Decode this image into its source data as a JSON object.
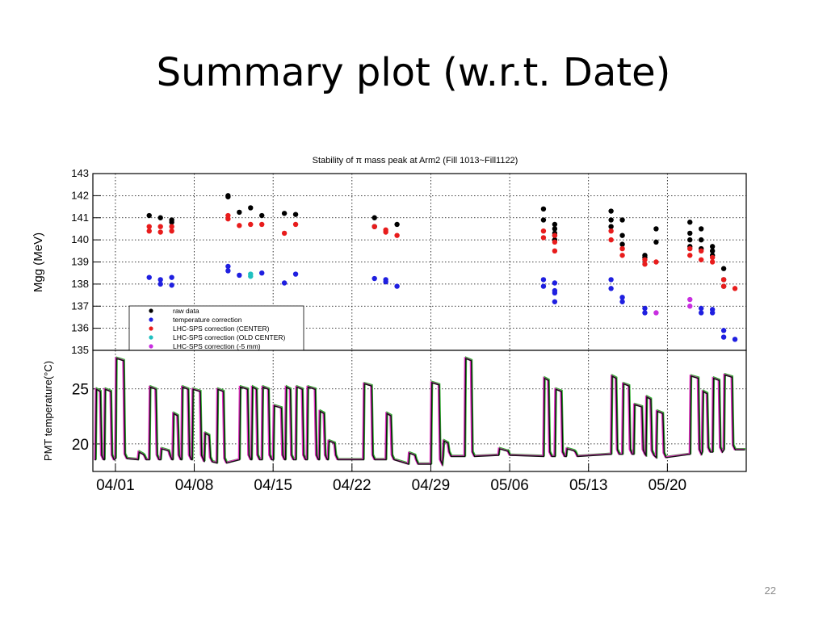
{
  "slide": {
    "title": "Summary plot (w.r.t. Date)",
    "page_number": "22"
  },
  "chart_data": [
    {
      "type": "scatter",
      "title": "Stability of π mass peak at Arm2 (Fill 1013~Fill1122)",
      "xlabel": "",
      "ylabel": "Mgg (MeV)",
      "ylim": [
        135,
        143
      ],
      "yticks": [
        "143",
        "142",
        "141",
        "140",
        "139",
        "138",
        "137",
        "136",
        "135"
      ],
      "xlim": [
        "03/30",
        "05/27"
      ],
      "grid": true,
      "legend_placement": "bottom-left",
      "legend": [
        {
          "label": "raw data",
          "color": "#000000"
        },
        {
          "label": "temperature correction",
          "color": "#1f1fe0"
        },
        {
          "label": "LHC-SPS correction (CENTER)",
          "color": "#e81c1c"
        },
        {
          "label": "LHC-SPS correction (OLD CENTER)",
          "color": "#20c0c0"
        },
        {
          "label": "LHC-SPS correction (-5 mm)",
          "color": "#c82ee0"
        }
      ],
      "series": [
        {
          "name": "raw data",
          "color": "#000000",
          "points": [
            [
              "04/04",
              141.1
            ],
            [
              "04/05",
              141.0
            ],
            [
              "04/06",
              140.9
            ],
            [
              "04/06",
              140.8
            ],
            [
              "04/11",
              142.0
            ],
            [
              "04/11",
              141.95
            ],
            [
              "04/12",
              141.25
            ],
            [
              "04/13",
              141.45
            ],
            [
              "04/14",
              141.1
            ],
            [
              "04/16",
              141.2
            ],
            [
              "04/17",
              141.15
            ],
            [
              "04/24",
              141.0
            ],
            [
              "04/24",
              140.6
            ],
            [
              "04/26",
              140.7
            ],
            [
              "05/09",
              141.4
            ],
            [
              "05/09",
              140.9
            ],
            [
              "05/10",
              140.5
            ],
            [
              "05/10",
              140.3
            ],
            [
              "05/10",
              140.0
            ],
            [
              "05/10",
              140.7
            ],
            [
              "05/10",
              140.2
            ],
            [
              "05/15",
              141.3
            ],
            [
              "05/15",
              140.9
            ],
            [
              "05/15",
              140.6
            ],
            [
              "05/16",
              140.9
            ],
            [
              "05/16",
              140.2
            ],
            [
              "05/16",
              139.8
            ],
            [
              "05/18",
              139.3
            ],
            [
              "05/18",
              139.2
            ],
            [
              "05/19",
              140.5
            ],
            [
              "05/19",
              139.9
            ],
            [
              "05/22",
              140.8
            ],
            [
              "05/22",
              140.3
            ],
            [
              "05/22",
              140.0
            ],
            [
              "05/22",
              139.7
            ],
            [
              "05/23",
              140.5
            ],
            [
              "05/23",
              140.0
            ],
            [
              "05/23",
              139.6
            ],
            [
              "05/24",
              139.5
            ],
            [
              "05/24",
              139.3
            ],
            [
              "05/24",
              139.7
            ],
            [
              "05/25",
              138.7
            ],
            [
              "05/25",
              138.2
            ],
            [
              "05/25",
              137.9
            ]
          ]
        },
        {
          "name": "temperature correction",
          "color": "#1f1fe0",
          "points": [
            [
              "04/04",
              138.3
            ],
            [
              "04/05",
              138.2
            ],
            [
              "04/05",
              138.0
            ],
            [
              "04/06",
              138.3
            ],
            [
              "04/06",
              137.95
            ],
            [
              "04/11",
              138.8
            ],
            [
              "04/11",
              138.6
            ],
            [
              "04/12",
              138.4
            ],
            [
              "04/14",
              138.5
            ],
            [
              "04/16",
              138.05
            ],
            [
              "04/17",
              138.45
            ],
            [
              "04/24",
              138.25
            ],
            [
              "04/25",
              138.2
            ],
            [
              "04/25",
              138.1
            ],
            [
              "04/26",
              137.9
            ],
            [
              "05/09",
              138.2
            ],
            [
              "05/09",
              137.9
            ],
            [
              "05/10",
              138.05
            ],
            [
              "05/10",
              137.7
            ],
            [
              "05/10",
              137.2
            ],
            [
              "05/10",
              137.6
            ],
            [
              "05/15",
              138.2
            ],
            [
              "05/15",
              137.8
            ],
            [
              "05/16",
              137.4
            ],
            [
              "05/16",
              137.2
            ],
            [
              "05/18",
              136.9
            ],
            [
              "05/18",
              136.7
            ],
            [
              "05/23",
              136.9
            ],
            [
              "05/23",
              136.7
            ],
            [
              "05/24",
              136.85
            ],
            [
              "05/24",
              136.7
            ],
            [
              "05/25",
              135.9
            ],
            [
              "05/25",
              135.6
            ],
            [
              "05/26",
              135.5
            ]
          ]
        },
        {
          "name": "LHC-SPS correction (CENTER)",
          "color": "#e81c1c",
          "points": [
            [
              "04/04",
              140.6
            ],
            [
              "04/04",
              140.4
            ],
            [
              "04/05",
              140.6
            ],
            [
              "04/05",
              140.35
            ],
            [
              "04/06",
              140.6
            ],
            [
              "04/06",
              140.4
            ],
            [
              "04/11",
              141.1
            ],
            [
              "04/11",
              140.95
            ],
            [
              "04/12",
              140.65
            ],
            [
              "04/13",
              140.7
            ],
            [
              "04/14",
              140.7
            ],
            [
              "04/16",
              140.3
            ],
            [
              "04/17",
              140.7
            ],
            [
              "04/24",
              140.6
            ],
            [
              "04/25",
              140.45
            ],
            [
              "04/25",
              140.35
            ],
            [
              "04/26",
              140.2
            ],
            [
              "05/09",
              140.4
            ],
            [
              "05/09",
              140.1
            ],
            [
              "05/10",
              140.2
            ],
            [
              "05/10",
              139.9
            ],
            [
              "05/10",
              139.5
            ],
            [
              "05/15",
              140.4
            ],
            [
              "05/15",
              140.0
            ],
            [
              "05/16",
              139.6
            ],
            [
              "05/16",
              139.3
            ],
            [
              "05/18",
              139.1
            ],
            [
              "05/18",
              138.9
            ],
            [
              "05/19",
              139.0
            ],
            [
              "05/22",
              139.6
            ],
            [
              "05/22",
              139.3
            ],
            [
              "05/23",
              139.5
            ],
            [
              "05/23",
              139.1
            ],
            [
              "05/24",
              139.2
            ],
            [
              "05/24",
              139.0
            ],
            [
              "05/25",
              138.2
            ],
            [
              "05/25",
              137.9
            ],
            [
              "05/26",
              137.8
            ]
          ]
        },
        {
          "name": "LHC-SPS correction (OLD CENTER)",
          "color": "#20c0c0",
          "points": [
            [
              "04/13",
              138.45
            ],
            [
              "04/13",
              138.35
            ]
          ]
        },
        {
          "name": "LHC-SPS correction (-5 mm)",
          "color": "#c82ee0",
          "points": [
            [
              "05/19",
              136.7
            ],
            [
              "05/22",
              137.3
            ],
            [
              "05/22",
              137.0
            ]
          ]
        }
      ]
    },
    {
      "type": "line",
      "title": "",
      "xlabel": "",
      "ylabel": "PMT temperature(°C)",
      "ylim": [
        17.5,
        28.5
      ],
      "yticks": [
        "25",
        "20"
      ],
      "xticks": [
        "04/01",
        "04/08",
        "04/15",
        "04/22",
        "04/29",
        "05/06",
        "05/13",
        "05/20"
      ],
      "xlim": [
        "03/30",
        "05/27"
      ],
      "grid": true,
      "series": [
        {
          "name": "",
          "color": "#111111"
        },
        {
          "name": "",
          "color": "#e030c0"
        },
        {
          "name": "",
          "color": "#30b030"
        }
      ],
      "segments": [
        {
          "start": "03/30",
          "end": "03/30",
          "high": 25.0,
          "low": 18.6
        },
        {
          "start": "03/31",
          "end": "03/31",
          "high": 25.0,
          "low": 18.6
        },
        {
          "start": "04/01",
          "end": "04/01",
          "high": 27.8,
          "low": 18.7
        },
        {
          "start": "04/03",
          "end": "04/03",
          "high": 19.3,
          "low": 18.6
        },
        {
          "start": "04/04",
          "end": "04/04",
          "high": 25.2,
          "low": 18.6
        },
        {
          "start": "04/05",
          "end": "04/05",
          "high": 19.6,
          "low": 18.6
        },
        {
          "start": "04/05",
          "end": "04/05",
          "high": 22.8,
          "low": 18.6
        },
        {
          "start": "04/06",
          "end": "04/06",
          "high": 25.2,
          "low": 18.6
        },
        {
          "start": "04/07",
          "end": "04/07",
          "high": 25.0,
          "low": 18.6
        },
        {
          "start": "04/08",
          "end": "04/08",
          "high": 21.0,
          "low": 18.4
        },
        {
          "start": "04/10",
          "end": "04/10",
          "high": 25.0,
          "low": 18.3
        },
        {
          "start": "04/12",
          "end": "04/12",
          "high": 25.2,
          "low": 18.6
        },
        {
          "start": "04/13",
          "end": "04/13",
          "high": 25.2,
          "low": 18.6
        },
        {
          "start": "04/14",
          "end": "04/14",
          "high": 25.2,
          "low": 18.6
        },
        {
          "start": "04/15",
          "end": "04/15",
          "high": 23.5,
          "low": 18.6
        },
        {
          "start": "04/16",
          "end": "04/16",
          "high": 25.2,
          "low": 18.6
        },
        {
          "start": "04/17",
          "end": "04/17",
          "high": 25.2,
          "low": 18.6
        },
        {
          "start": "04/18",
          "end": "04/18",
          "high": 25.2,
          "low": 18.6
        },
        {
          "start": "04/18",
          "end": "04/18",
          "high": 23.0,
          "low": 18.6
        },
        {
          "start": "04/19",
          "end": "04/19",
          "high": 20.3,
          "low": 18.6
        },
        {
          "start": "04/23",
          "end": "04/23",
          "high": 25.5,
          "low": 18.6
        },
        {
          "start": "04/25",
          "end": "04/25",
          "high": 22.8,
          "low": 18.6
        },
        {
          "start": "04/27",
          "end": "04/27",
          "high": 19.2,
          "low": 18.2
        },
        {
          "start": "04/29",
          "end": "04/29",
          "high": 25.6,
          "low": 18.2
        },
        {
          "start": "04/30",
          "end": "04/30",
          "high": 20.3,
          "low": 18.9
        },
        {
          "start": "05/02",
          "end": "05/02",
          "high": 27.8,
          "low": 18.9
        },
        {
          "start": "05/05",
          "end": "05/05",
          "high": 19.6,
          "low": 19.0
        },
        {
          "start": "05/09",
          "end": "05/09",
          "high": 26.0,
          "low": 18.9
        },
        {
          "start": "05/10",
          "end": "05/10",
          "high": 25.0,
          "low": 18.9
        },
        {
          "start": "05/11",
          "end": "05/11",
          "high": 19.6,
          "low": 18.9
        },
        {
          "start": "05/15",
          "end": "05/15",
          "high": 26.2,
          "low": 19.1
        },
        {
          "start": "05/16",
          "end": "05/16",
          "high": 25.5,
          "low": 19.1
        },
        {
          "start": "05/17",
          "end": "05/17",
          "high": 23.6,
          "low": 19.1
        },
        {
          "start": "05/18",
          "end": "05/18",
          "high": 24.3,
          "low": 19.0
        },
        {
          "start": "05/19",
          "end": "05/19",
          "high": 23.0,
          "low": 18.8
        },
        {
          "start": "05/22",
          "end": "05/22",
          "high": 26.2,
          "low": 19.1
        },
        {
          "start": "05/23",
          "end": "05/23",
          "high": 24.8,
          "low": 19.3
        },
        {
          "start": "05/24",
          "end": "05/24",
          "high": 26.0,
          "low": 19.3
        },
        {
          "start": "05/25",
          "end": "05/25",
          "high": 26.3,
          "low": 19.5
        }
      ]
    }
  ]
}
